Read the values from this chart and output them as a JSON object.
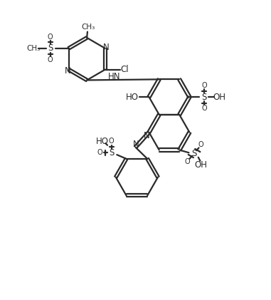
{
  "bg_color": "#ffffff",
  "line_color": "#2a2a2a",
  "line_width": 1.6,
  "text_color": "#2a2a2a",
  "font_size": 8.5,
  "figsize": [
    3.81,
    4.21
  ],
  "dpi": 100,
  "xlim": [
    0,
    10
  ],
  "ylim": [
    0,
    11
  ]
}
